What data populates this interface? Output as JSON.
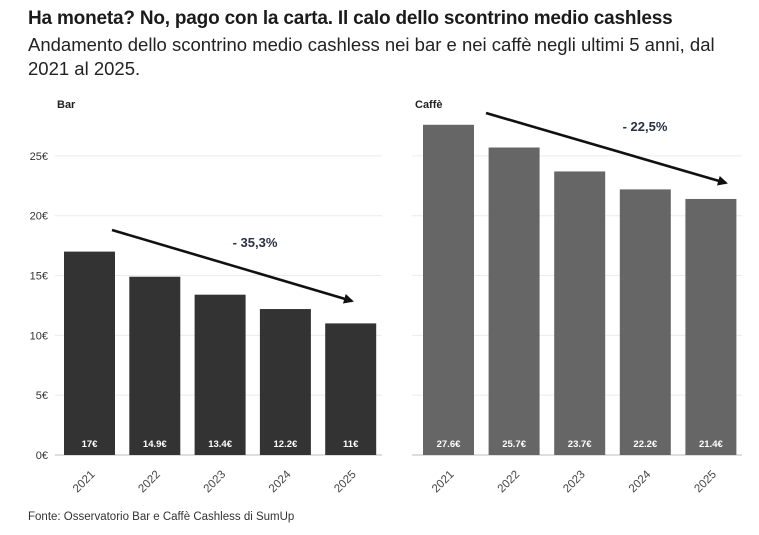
{
  "header": {
    "title": "Ha moneta? No, pago con la carta. Il calo dello scontrino medio cashless",
    "subtitle": "Andamento dello scontrino medio cashless nei bar e nei caffè negli ultimi 5 anni, dal 2021 al 2025."
  },
  "footer": {
    "source": "Fonte: Osservatorio Bar e Caffè Cashless di SumUp"
  },
  "chart_data": [
    {
      "type": "bar",
      "title": "Bar",
      "categories": [
        "2021",
        "2022",
        "2023",
        "2024",
        "2025"
      ],
      "values": [
        17,
        14.9,
        13.4,
        12.2,
        11
      ],
      "value_labels": [
        "17€",
        "14.9€",
        "13.4€",
        "12.2€",
        "11€"
      ],
      "yticks": [
        "0€",
        "5€",
        "10€",
        "15€",
        "20€",
        "25€"
      ],
      "ylim": [
        0,
        28
      ],
      "color": "#333333",
      "annotation": "- 35,3%",
      "grid": true
    },
    {
      "type": "bar",
      "title": "Caffè",
      "categories": [
        "2021",
        "2022",
        "2023",
        "2024",
        "2025"
      ],
      "values": [
        27.6,
        25.7,
        23.7,
        22.2,
        21.4
      ],
      "value_labels": [
        "27.6€",
        "25.7€",
        "23.7€",
        "22.2€",
        "21.4€"
      ],
      "ylim": [
        0,
        28
      ],
      "color": "#666666",
      "annotation": "- 22,5%",
      "grid": true
    }
  ],
  "colors": {
    "grid": "#ececec",
    "arrow": "#111111",
    "annotation": "#2b2f45"
  }
}
